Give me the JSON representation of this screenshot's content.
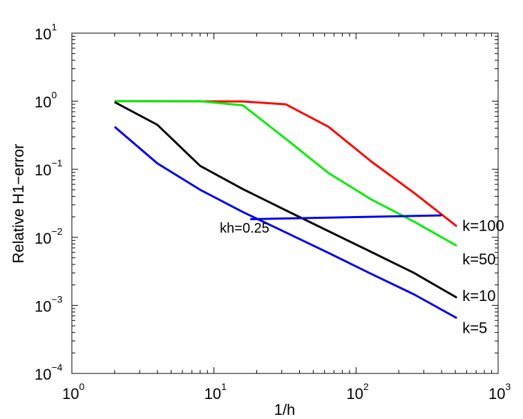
{
  "chart_data": {
    "type": "line",
    "xlabel": "1/h",
    "ylabel": "Relative H1−error",
    "xscale": "log",
    "yscale": "log",
    "xlim": [
      1,
      1000
    ],
    "ylim": [
      0.0001,
      10
    ],
    "grid": false,
    "x_ticks": [
      {
        "value": 1,
        "base": "10",
        "exp": "0"
      },
      {
        "value": 10,
        "base": "10",
        "exp": "1"
      },
      {
        "value": 100,
        "base": "10",
        "exp": "2"
      },
      {
        "value": 1000,
        "base": "10",
        "exp": "3"
      }
    ],
    "y_ticks": [
      {
        "value": 0.0001,
        "base": "10",
        "exp": "−4"
      },
      {
        "value": 0.001,
        "base": "10",
        "exp": "−3"
      },
      {
        "value": 0.01,
        "base": "10",
        "exp": "−2"
      },
      {
        "value": 0.1,
        "base": "10",
        "exp": "−1"
      },
      {
        "value": 1,
        "base": "10",
        "exp": "0"
      },
      {
        "value": 10,
        "base": "10",
        "exp": "1"
      }
    ],
    "series": [
      {
        "label": "k=100",
        "color": "#ff0000",
        "x": [
          2,
          16,
          32,
          64,
          128,
          256,
          512
        ],
        "y": [
          1.0,
          0.99,
          0.9,
          0.42,
          0.13,
          0.045,
          0.0145
        ]
      },
      {
        "label": "k=50",
        "color": "#00ee00",
        "x": [
          2,
          8,
          16,
          32,
          64,
          128,
          256,
          512
        ],
        "y": [
          1.0,
          1.0,
          0.87,
          0.28,
          0.088,
          0.036,
          0.017,
          0.0075
        ]
      },
      {
        "label": "k=10",
        "color": "#000000",
        "x": [
          2,
          4,
          8,
          16,
          32,
          64,
          128,
          256,
          512
        ],
        "y": [
          0.97,
          0.45,
          0.112,
          0.051,
          0.025,
          0.0123,
          0.0061,
          0.003,
          0.0013
        ]
      },
      {
        "label": "k=5",
        "color": "#0000ee",
        "x": [
          2,
          4,
          8,
          16,
          32,
          64,
          128,
          256,
          512
        ],
        "y": [
          0.42,
          0.122,
          0.05,
          0.0235,
          0.0118,
          0.0059,
          0.0029,
          0.00145,
          0.00065
        ]
      },
      {
        "label": "",
        "color": "#0000ee",
        "x": [
          18,
          400
        ],
        "y": [
          0.0185,
          0.021
        ]
      }
    ],
    "series_labels": [
      {
        "text": "k=100",
        "x": 560,
        "y": 0.015
      },
      {
        "text": "k=50",
        "x": 560,
        "y": 0.0048
      },
      {
        "text": "k=10",
        "x": 560,
        "y": 0.0014
      },
      {
        "text": "k=5",
        "x": 560,
        "y": 0.00047
      }
    ],
    "annotations": [
      {
        "text": "kh=0.25",
        "x": 11,
        "y": 0.0142
      }
    ]
  }
}
